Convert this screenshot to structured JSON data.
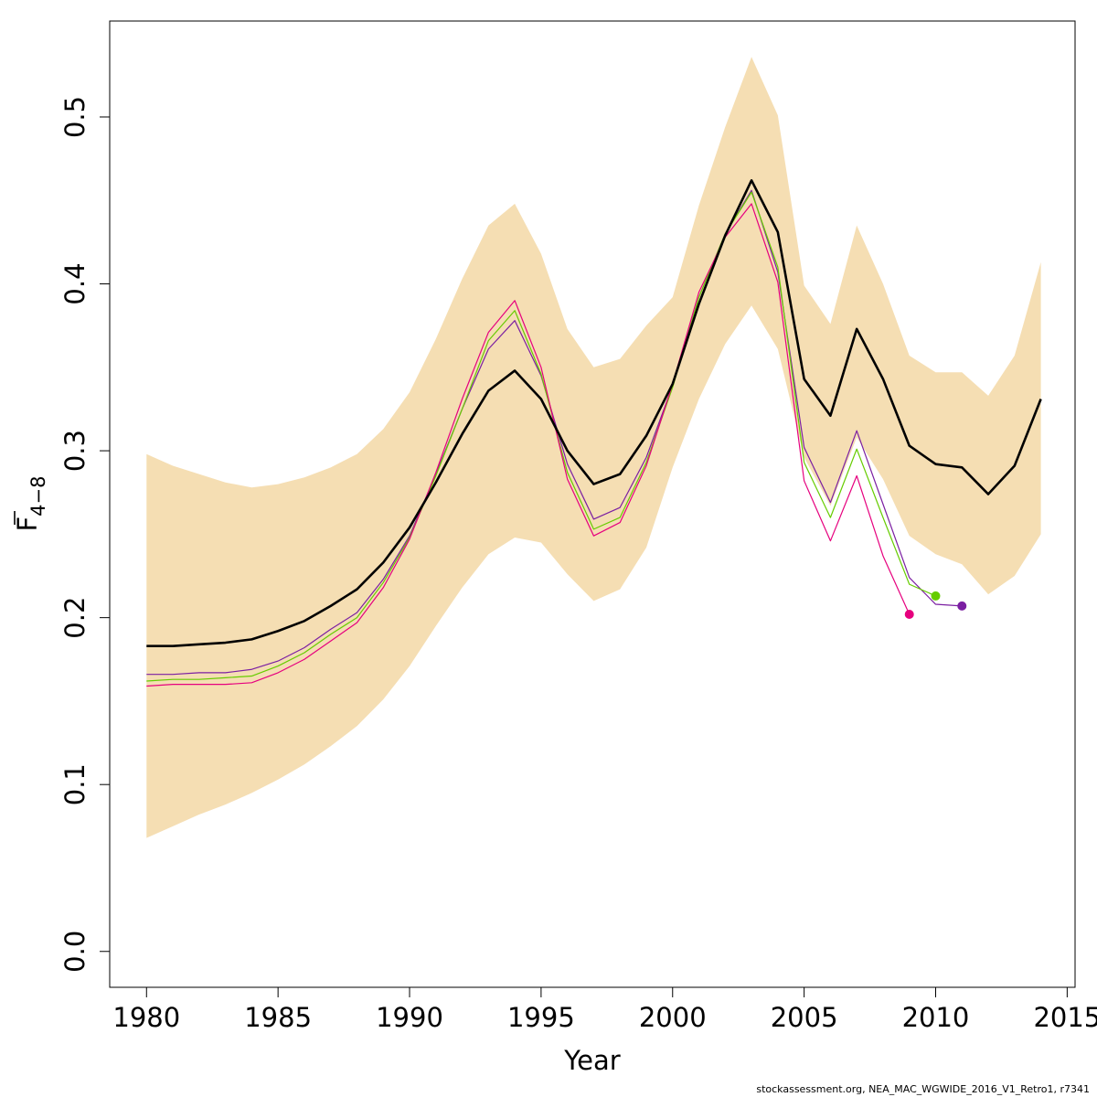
{
  "chart_data": {
    "type": "line",
    "xlabel": "Year",
    "ylabel_main": "F",
    "ylabel_sub": "4−8",
    "xlim": [
      1978.6,
      2015.3
    ],
    "ylim": [
      -0.0215,
      0.5575
    ],
    "x_ticks": [
      1980,
      1985,
      1990,
      1995,
      2000,
      2005,
      2010,
      2015
    ],
    "y_ticks": [
      0.0,
      0.1,
      0.2,
      0.3,
      0.4,
      0.5
    ],
    "y_tick_labels": [
      "0.0",
      "0.1",
      "0.2",
      "0.3",
      "0.4",
      "0.5"
    ],
    "confidence_band": {
      "color": "#F5DEB3",
      "x": [
        1980,
        1981,
        1982,
        1983,
        1984,
        1985,
        1986,
        1987,
        1988,
        1989,
        1990,
        1991,
        1992,
        1993,
        1994,
        1995,
        1996,
        1997,
        1998,
        1999,
        2000,
        2001,
        2002,
        2003,
        2004,
        2005,
        2006,
        2007,
        2008,
        2009,
        2010,
        2011,
        2012,
        2013,
        2014
      ],
      "lower": [
        0.068,
        0.075,
        0.082,
        0.088,
        0.095,
        0.103,
        0.112,
        0.123,
        0.135,
        0.151,
        0.171,
        0.195,
        0.218,
        0.238,
        0.248,
        0.245,
        0.226,
        0.21,
        0.217,
        0.242,
        0.29,
        0.331,
        0.364,
        0.387,
        0.361,
        0.296,
        0.267,
        0.308,
        0.283,
        0.249,
        0.238,
        0.232,
        0.214,
        0.225,
        0.25
      ],
      "upper": [
        0.298,
        0.291,
        0.286,
        0.281,
        0.278,
        0.28,
        0.284,
        0.29,
        0.298,
        0.313,
        0.335,
        0.367,
        0.403,
        0.435,
        0.448,
        0.418,
        0.373,
        0.35,
        0.355,
        0.375,
        0.392,
        0.447,
        0.494,
        0.536,
        0.501,
        0.399,
        0.376,
        0.435,
        0.4,
        0.357,
        0.347,
        0.347,
        0.333,
        0.357,
        0.413
      ]
    },
    "series": [
      {
        "color": "#000000",
        "width": 2.6,
        "x": [
          1980,
          1981,
          1982,
          1983,
          1984,
          1985,
          1986,
          1987,
          1988,
          1989,
          1990,
          1991,
          1992,
          1993,
          1994,
          1995,
          1996,
          1997,
          1998,
          1999,
          2000,
          2001,
          2002,
          2003,
          2004,
          2005,
          2006,
          2007,
          2008,
          2009,
          2010,
          2011,
          2012,
          2013,
          2014
        ],
        "values": [
          0.183,
          0.183,
          0.184,
          0.185,
          0.187,
          0.192,
          0.198,
          0.207,
          0.217,
          0.233,
          0.254,
          0.281,
          0.31,
          0.336,
          0.348,
          0.331,
          0.3,
          0.28,
          0.286,
          0.309,
          0.34,
          0.388,
          0.429,
          0.462,
          0.431,
          0.343,
          0.321,
          0.373,
          0.343,
          0.303,
          0.292,
          0.29,
          0.274,
          0.291,
          0.331
        ],
        "end_marker": false
      },
      {
        "color": "#7B1FA2",
        "width": 1.2,
        "x": [
          1980,
          1981,
          1982,
          1983,
          1984,
          1985,
          1986,
          1987,
          1988,
          1989,
          1990,
          1991,
          1992,
          1993,
          1994,
          1995,
          1996,
          1997,
          1998,
          1999,
          2000,
          2001,
          2002,
          2003,
          2004,
          2005,
          2006,
          2007,
          2008,
          2009,
          2010,
          2011
        ],
        "values": [
          0.166,
          0.166,
          0.167,
          0.167,
          0.169,
          0.174,
          0.182,
          0.193,
          0.203,
          0.223,
          0.249,
          0.286,
          0.325,
          0.361,
          0.378,
          0.345,
          0.292,
          0.259,
          0.266,
          0.296,
          0.339,
          0.392,
          0.43,
          0.456,
          0.407,
          0.302,
          0.269,
          0.312,
          0.268,
          0.224,
          0.208,
          0.207
        ],
        "end_marker": true
      },
      {
        "color": "#66CC00",
        "width": 1.2,
        "x": [
          1980,
          1981,
          1982,
          1983,
          1984,
          1985,
          1986,
          1987,
          1988,
          1989,
          1990,
          1991,
          1992,
          1993,
          1994,
          1995,
          1996,
          1997,
          1998,
          1999,
          2000,
          2001,
          2002,
          2003,
          2004,
          2005,
          2006,
          2007,
          2008,
          2009,
          2010
        ],
        "values": [
          0.162,
          0.163,
          0.163,
          0.164,
          0.165,
          0.171,
          0.179,
          0.19,
          0.2,
          0.221,
          0.248,
          0.285,
          0.325,
          0.366,
          0.384,
          0.346,
          0.287,
          0.253,
          0.26,
          0.293,
          0.338,
          0.392,
          0.43,
          0.455,
          0.41,
          0.293,
          0.26,
          0.301,
          0.26,
          0.22,
          0.213
        ],
        "end_marker": true
      },
      {
        "color": "#E6007E",
        "width": 1.2,
        "x": [
          1980,
          1981,
          1982,
          1983,
          1984,
          1985,
          1986,
          1987,
          1988,
          1989,
          1990,
          1991,
          1992,
          1993,
          1994,
          1995,
          1996,
          1997,
          1998,
          1999,
          2000,
          2001,
          2002,
          2003,
          2004,
          2005,
          2006,
          2007,
          2008,
          2009
        ],
        "values": [
          0.159,
          0.16,
          0.16,
          0.16,
          0.161,
          0.167,
          0.175,
          0.186,
          0.197,
          0.218,
          0.247,
          0.287,
          0.331,
          0.371,
          0.39,
          0.35,
          0.283,
          0.249,
          0.257,
          0.291,
          0.34,
          0.395,
          0.428,
          0.448,
          0.401,
          0.282,
          0.246,
          0.285,
          0.237,
          0.202
        ],
        "end_marker": true
      }
    ]
  },
  "footer": {
    "credit": "stockassessment.org, NEA_MAC_WGWIDE_2016_V1_Retro1, r7341"
  }
}
